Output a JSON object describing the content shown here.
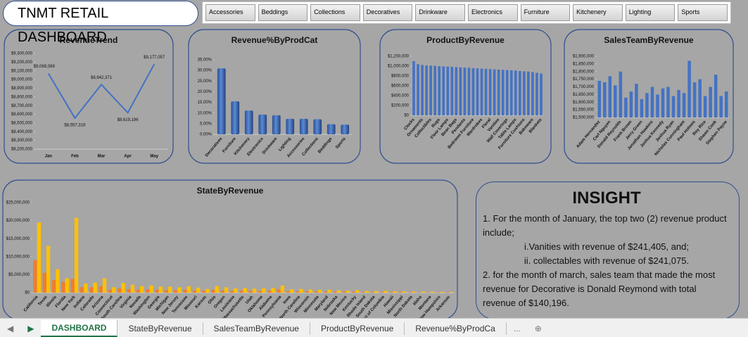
{
  "header": {
    "title": "TNMT RETAIL DASHBOARD"
  },
  "slicers": [
    "Accessories",
    "Beddings",
    "Collections",
    "Decoratives",
    "Drinkware",
    "Electronics",
    "Furniture",
    "Kitchenery",
    "Lighting",
    "Sports"
  ],
  "chart_data": [
    {
      "type": "line",
      "title": "RevenueTrend",
      "color": "#4472c4",
      "categories": [
        "Jan",
        "Feb",
        "Mar",
        "Apr",
        "May"
      ],
      "values": [
        9069089,
        8557316,
        8942371,
        8619196,
        9177057
      ],
      "value_labels": [
        "$9,069,089",
        "$8,557,316",
        "$8,942,371",
        "$8,619,196",
        "$9,177,057"
      ],
      "ylim": [
        8200000,
        9300000
      ],
      "yticks": [
        {
          "value": 8200000,
          "label": "$8,200,000"
        },
        {
          "value": 8300000,
          "label": "$8,300,000"
        },
        {
          "value": 8400000,
          "label": "$8,400,000"
        },
        {
          "value": 8500000,
          "label": "$8,500,000"
        },
        {
          "value": 8600000,
          "label": "$8,600,000"
        },
        {
          "value": 8700000,
          "label": "$8,700,000"
        },
        {
          "value": 8800000,
          "label": "$8,800,000"
        },
        {
          "value": 8900000,
          "label": "$8,900,000"
        },
        {
          "value": 9000000,
          "label": "$9,000,000"
        },
        {
          "value": 9100000,
          "label": "$9,100,000"
        },
        {
          "value": 9200000,
          "label": "$9,200,000"
        },
        {
          "value": 9300000,
          "label": "$9,300,000"
        }
      ]
    },
    {
      "type": "bar",
      "title": "Revenue%ByProdCat",
      "color": "#4472c4",
      "categories": [
        "Decoratives",
        "Furniture",
        "Kitchenery",
        "Electronics",
        "Drinkware",
        "Lighting",
        "Accessories",
        "Collections",
        "Beddings",
        "Sports"
      ],
      "values": [
        31,
        15.5,
        11.2,
        9.3,
        9,
        7.3,
        7.3,
        7.1,
        4.8,
        4.6
      ],
      "ylim": [
        0,
        35
      ],
      "yticks": [
        {
          "value": 0,
          "label": "0.00%"
        },
        {
          "value": 5,
          "label": "5.00%"
        },
        {
          "value": 10,
          "label": "10.00%"
        },
        {
          "value": 15,
          "label": "15.00%"
        },
        {
          "value": 20,
          "label": "20.00%"
        },
        {
          "value": 25,
          "label": "25.00%"
        },
        {
          "value": 30,
          "label": "30.00%"
        },
        {
          "value": 35,
          "label": "35.00%"
        }
      ]
    },
    {
      "type": "bar",
      "title": "ProductByRevenue",
      "color": "#4472c4",
      "categories": [
        "Clocks",
        null,
        "Ornaments",
        null,
        "Collectibles",
        null,
        "Rugs",
        null,
        "Floor Lamps",
        null,
        "Bean Bags",
        null,
        "Pendants",
        null,
        "Bedroom Furniture",
        null,
        "Wardrobes",
        null,
        "Floral",
        null,
        "Vanities",
        null,
        "Wall Coverings",
        null,
        "Table Lamps",
        null,
        "Furniture Cushions",
        null,
        "Bakeware",
        null,
        "Blankets"
      ],
      "values": [
        1100000,
        1040000,
        1025000,
        1015000,
        1010000,
        1005000,
        1000000,
        995000,
        990000,
        985000,
        980000,
        975000,
        970000,
        965000,
        960000,
        955000,
        950000,
        945000,
        940000,
        935000,
        930000,
        925000,
        920000,
        915000,
        910000,
        900000,
        895000,
        890000,
        880000,
        865000,
        850000
      ],
      "ylim": [
        0,
        1200000
      ],
      "yticks": [
        {
          "value": 0,
          "label": "$0"
        },
        {
          "value": 200000,
          "label": "$200,000"
        },
        {
          "value": 400000,
          "label": "$400,000"
        },
        {
          "value": 600000,
          "label": "$600,000"
        },
        {
          "value": 800000,
          "label": "$800,000"
        },
        {
          "value": 1000000,
          "label": "$1,000,000"
        },
        {
          "value": 1200000,
          "label": "$1,200,000"
        }
      ]
    },
    {
      "type": "bar",
      "title": "SalesTeamByRevenue",
      "color": "#4472c4",
      "categories": [
        "Adam Hernandez",
        null,
        "Carl Nguyen",
        null,
        "Donald Reynolds",
        null,
        "Frank Brown",
        null,
        "Jerry Green",
        null,
        "Jonathan Hawkins",
        null,
        "Joshua Kennedy",
        null,
        "Joshua Ryan",
        null,
        "Nicholas Cunningham",
        null,
        "Paul Holmes",
        null,
        "Roy Rice",
        null,
        "Shawn Cook",
        null,
        "Stephen Payne"
      ],
      "values": [
        1740000,
        1730000,
        1770000,
        1710000,
        1800000,
        1630000,
        1670000,
        1720000,
        1620000,
        1660000,
        1700000,
        1650000,
        1690000,
        1700000,
        1640000,
        1680000,
        1660000,
        1870000,
        1730000,
        1750000,
        1640000,
        1700000,
        1780000,
        1640000,
        1670000
      ],
      "ylim": [
        1500000,
        1900000
      ],
      "yticks": [
        {
          "value": 1500000,
          "label": "$1,500,000"
        },
        {
          "value": 1550000,
          "label": "$1,550,000"
        },
        {
          "value": 1600000,
          "label": "$1,600,000"
        },
        {
          "value": 1650000,
          "label": "$1,650,000"
        },
        {
          "value": 1700000,
          "label": "$1,700,000"
        },
        {
          "value": 1750000,
          "label": "$1,750,000"
        },
        {
          "value": 1800000,
          "label": "$1,800,000"
        },
        {
          "value": 1850000,
          "label": "$1,850,000"
        },
        {
          "value": 1900000,
          "label": "$1,900,000"
        }
      ]
    },
    {
      "type": "bar",
      "title": "StateByRevenue",
      "categories": [
        "California",
        "Texas",
        "Illinois",
        "Florida",
        "New York",
        "Indiana",
        "Colorado",
        "Arizona",
        "Connecticut",
        "South Carolina",
        "Virginia",
        "Nevada",
        "Washington",
        "Georgia",
        "Michigan",
        "New Jersey",
        "Tennessee",
        "Missouri",
        "Kansas",
        "Ohio",
        "Oregon",
        "Louisiana",
        "Massachusetts",
        "Utah",
        "Oklahoma",
        "Alabama",
        "Pennsylvania",
        "Iowa",
        "North Carolina",
        "Wisconsin",
        "Minnesota",
        "Maryland",
        "Nebraska",
        "New Mexico",
        "Kentucky",
        "Rhode Island",
        "South Dakota",
        "District of Columbia",
        "Hawaii",
        "Mississippi",
        "North Dakota",
        "Idaho",
        "Montana",
        "New Hampshire",
        "Arkansas"
      ],
      "series": [
        {
          "color": "#ed7d31",
          "values": [
            9000000,
            5500000,
            3500000,
            3000000,
            3800000,
            1500000,
            1500000,
            1800000,
            800000,
            1200000,
            1000000,
            800000,
            900000,
            800000,
            700000,
            700000,
            800000,
            600000,
            500000,
            800000,
            600000,
            500000,
            600000,
            500000,
            500000,
            600000,
            900000,
            400000,
            400000,
            400000,
            300000,
            300000,
            300000,
            300000,
            300000,
            200000,
            200000,
            200000,
            200000,
            200000,
            100000,
            100000,
            100000,
            100000,
            100000
          ]
        },
        {
          "color": "#ffc000",
          "values": [
            19500000,
            13000000,
            6500000,
            4000000,
            20800000,
            2500000,
            2800000,
            4000000,
            1500000,
            2700000,
            2200000,
            1800000,
            2000000,
            1700000,
            1700000,
            1500000,
            1800000,
            1400000,
            1000000,
            1800000,
            1500000,
            1200000,
            1300000,
            1100000,
            1200000,
            1300000,
            2000000,
            900000,
            1000000,
            900000,
            800000,
            800000,
            700000,
            600000,
            700000,
            500000,
            500000,
            500000,
            400000,
            400000,
            300000,
            300000,
            300000,
            200000,
            200000
          ]
        }
      ],
      "ylim": [
        0,
        25000000
      ],
      "yticks": [
        {
          "value": 0,
          "label": "$0"
        },
        {
          "value": 5000000,
          "label": "$5,000,000"
        },
        {
          "value": 10000000,
          "label": "$10,000,000"
        },
        {
          "value": 15000000,
          "label": "$15,000,000"
        },
        {
          "value": 20000000,
          "label": "$20,000,000"
        },
        {
          "value": 25000000,
          "label": "$25,000,000"
        }
      ]
    }
  ],
  "insight": {
    "title": "INSIGHT",
    "lines": [
      "1. For the month of January, the top two (2) revenue product include;",
      "i.Vanities with revenue of $241,405, and;",
      "ii. collectables with revenue of $241,075.",
      "2. for the month of march, sales team that made the most revenue for Decorative is Donald Reymond with total revenue of $140,196."
    ]
  },
  "tabs": [
    "DASHBOARD",
    "StateByRevenue",
    "SalesTeamByRevenue",
    "ProductByRevenue",
    "Revenue%ByProdCa"
  ],
  "tabs_more": "..."
}
